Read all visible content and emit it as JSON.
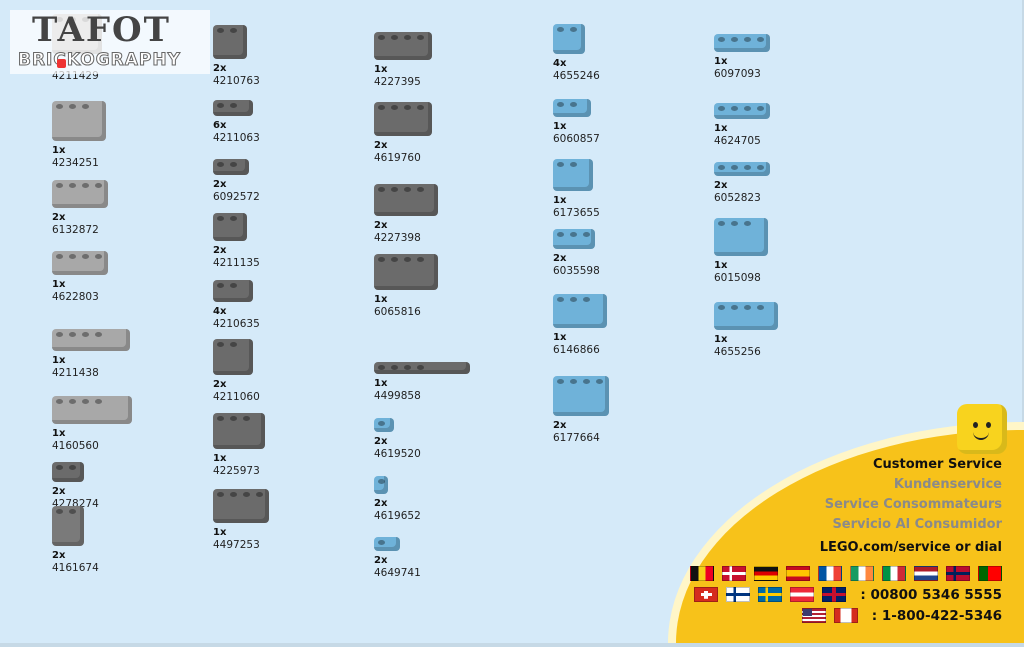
{
  "watermark": {
    "text": "BRICKOGRAPHY",
    "mark": "TAFOT"
  },
  "columns": [
    [
      {
        "qty": "",
        "id": "4211429",
        "color": "#b9b9b9"
      },
      {
        "qty": "1x",
        "id": "4234251",
        "color": "#a8a8a8"
      },
      {
        "qty": "2x",
        "id": "6132872",
        "color": "#a8a8a8"
      },
      {
        "qty": "1x",
        "id": "4622803",
        "color": "#a8a8a8"
      },
      {
        "qty": "1x",
        "id": "4211438",
        "color": "#a8a8a8"
      },
      {
        "qty": "1x",
        "id": "4160560",
        "color": "#a8a8a8"
      },
      {
        "qty": "2x",
        "id": "4278274",
        "color": "#6b6b6b"
      },
      {
        "qty": "2x",
        "id": "4161674",
        "color": "#7a7a7a"
      }
    ],
    [
      {
        "qty": "2x",
        "id": "4210763",
        "color": "#6b6b6b"
      },
      {
        "qty": "6x",
        "id": "4211063",
        "color": "#6b6b6b"
      },
      {
        "qty": "2x",
        "id": "6092572",
        "color": "#6b6b6b"
      },
      {
        "qty": "2x",
        "id": "4211135",
        "color": "#6b6b6b"
      },
      {
        "qty": "4x",
        "id": "4210635",
        "color": "#6b6b6b"
      },
      {
        "qty": "2x",
        "id": "4211060",
        "color": "#6b6b6b"
      },
      {
        "qty": "1x",
        "id": "4225973",
        "color": "#6b6b6b"
      },
      {
        "qty": "1x",
        "id": "4497253",
        "color": "#6b6b6b"
      }
    ],
    [
      {
        "qty": "1x",
        "id": "4227395",
        "color": "#6b6b6b"
      },
      {
        "qty": "2x",
        "id": "4619760",
        "color": "#6b6b6b"
      },
      {
        "qty": "2x",
        "id": "4227398",
        "color": "#6b6b6b"
      },
      {
        "qty": "1x",
        "id": "6065816",
        "color": "#6b6b6b"
      },
      {
        "qty": "1x",
        "id": "4499858",
        "color": "#6b6b6b"
      },
      {
        "qty": "2x",
        "id": "4619520",
        "color": "#6fb2d9"
      },
      {
        "qty": "2x",
        "id": "4619652",
        "color": "#6fb2d9"
      },
      {
        "qty": "2x",
        "id": "4649741",
        "color": "#6fb2d9"
      }
    ],
    [
      {
        "qty": "4x",
        "id": "4655246",
        "color": "#6fb2d9"
      },
      {
        "qty": "1x",
        "id": "6060857",
        "color": "#6fb2d9"
      },
      {
        "qty": "1x",
        "id": "6173655",
        "color": "#6fb2d9"
      },
      {
        "qty": "2x",
        "id": "6035598",
        "color": "#6fb2d9"
      },
      {
        "qty": "1x",
        "id": "6146866",
        "color": "#6fb2d9"
      },
      {
        "qty": "2x",
        "id": "6177664",
        "color": "#6fb2d9"
      }
    ],
    [
      {
        "qty": "1x",
        "id": "6097093",
        "color": "#6fb2d9"
      },
      {
        "qty": "1x",
        "id": "4624705",
        "color": "#6fb2d9"
      },
      {
        "qty": "2x",
        "id": "6052823",
        "color": "#6fb2d9"
      },
      {
        "qty": "1x",
        "id": "6015098",
        "color": "#6fb2d9"
      },
      {
        "qty": "1x",
        "id": "4655256",
        "color": "#6fb2d9"
      }
    ]
  ],
  "customer_service": {
    "title": "Customer Service",
    "translations": [
      "Kundenservice",
      "Service Consommateurs",
      "Servicio Al Consumidor"
    ],
    "link_text": "LEGO.com/service or dial",
    "phone_europe": ": 00800 5346 5555",
    "phone_na": ": 1-800-422-5346",
    "flags_row1": [
      "belgium",
      "denmark",
      "germany",
      "spain",
      "france",
      "ireland",
      "italy",
      "netherlands",
      "norway",
      "portugal"
    ],
    "flags_row2": [
      "switzerland",
      "finland",
      "sweden",
      "austria",
      "united-kingdom"
    ],
    "flags_row3": [
      "united-states",
      "canada"
    ],
    "colors": {
      "title": "#111111",
      "translation": "#8a8a8a",
      "yellow": "#f7c21a"
    }
  }
}
